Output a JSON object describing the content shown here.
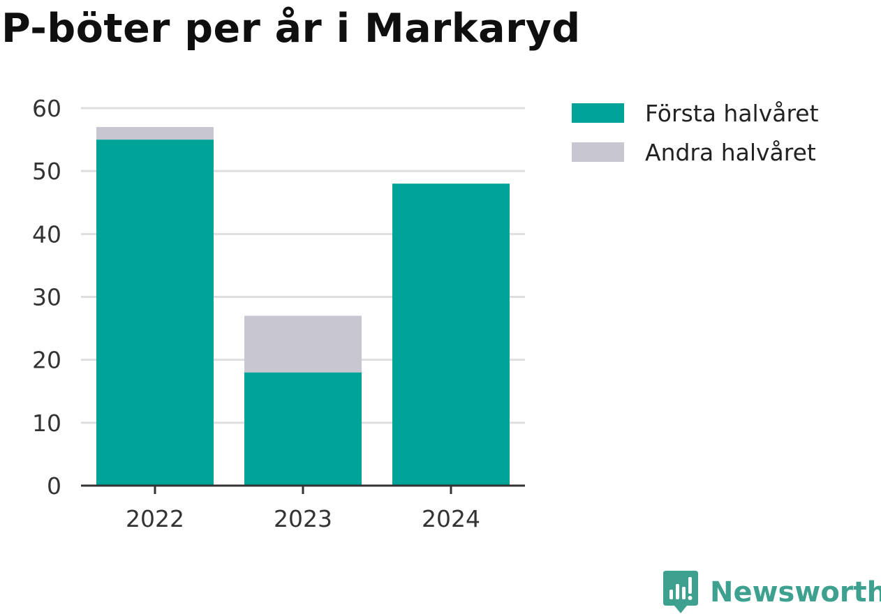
{
  "page": {
    "title": "P-böter per år i Markaryd"
  },
  "chart_data": {
    "type": "bar",
    "stacked": true,
    "title": "P-böter per år i Markaryd",
    "xlabel": "",
    "ylabel": "",
    "categories": [
      "2022",
      "2023",
      "2024"
    ],
    "series": [
      {
        "name": "Första halvåret",
        "values": [
          55,
          18,
          48
        ],
        "color": "#00a398"
      },
      {
        "name": "Andra halvåret",
        "values": [
          2,
          9,
          0
        ],
        "color": "#c7c6d1"
      }
    ],
    "ylim": [
      0,
      60
    ],
    "yticks": [
      0,
      10,
      20,
      30,
      40,
      50,
      60
    ],
    "grid": true,
    "legend": "top-right"
  },
  "branding": {
    "logo_text": "Newsworthy",
    "logo_icon": "newsworthy-logo-icon",
    "logo_color": "#3ea08f"
  }
}
